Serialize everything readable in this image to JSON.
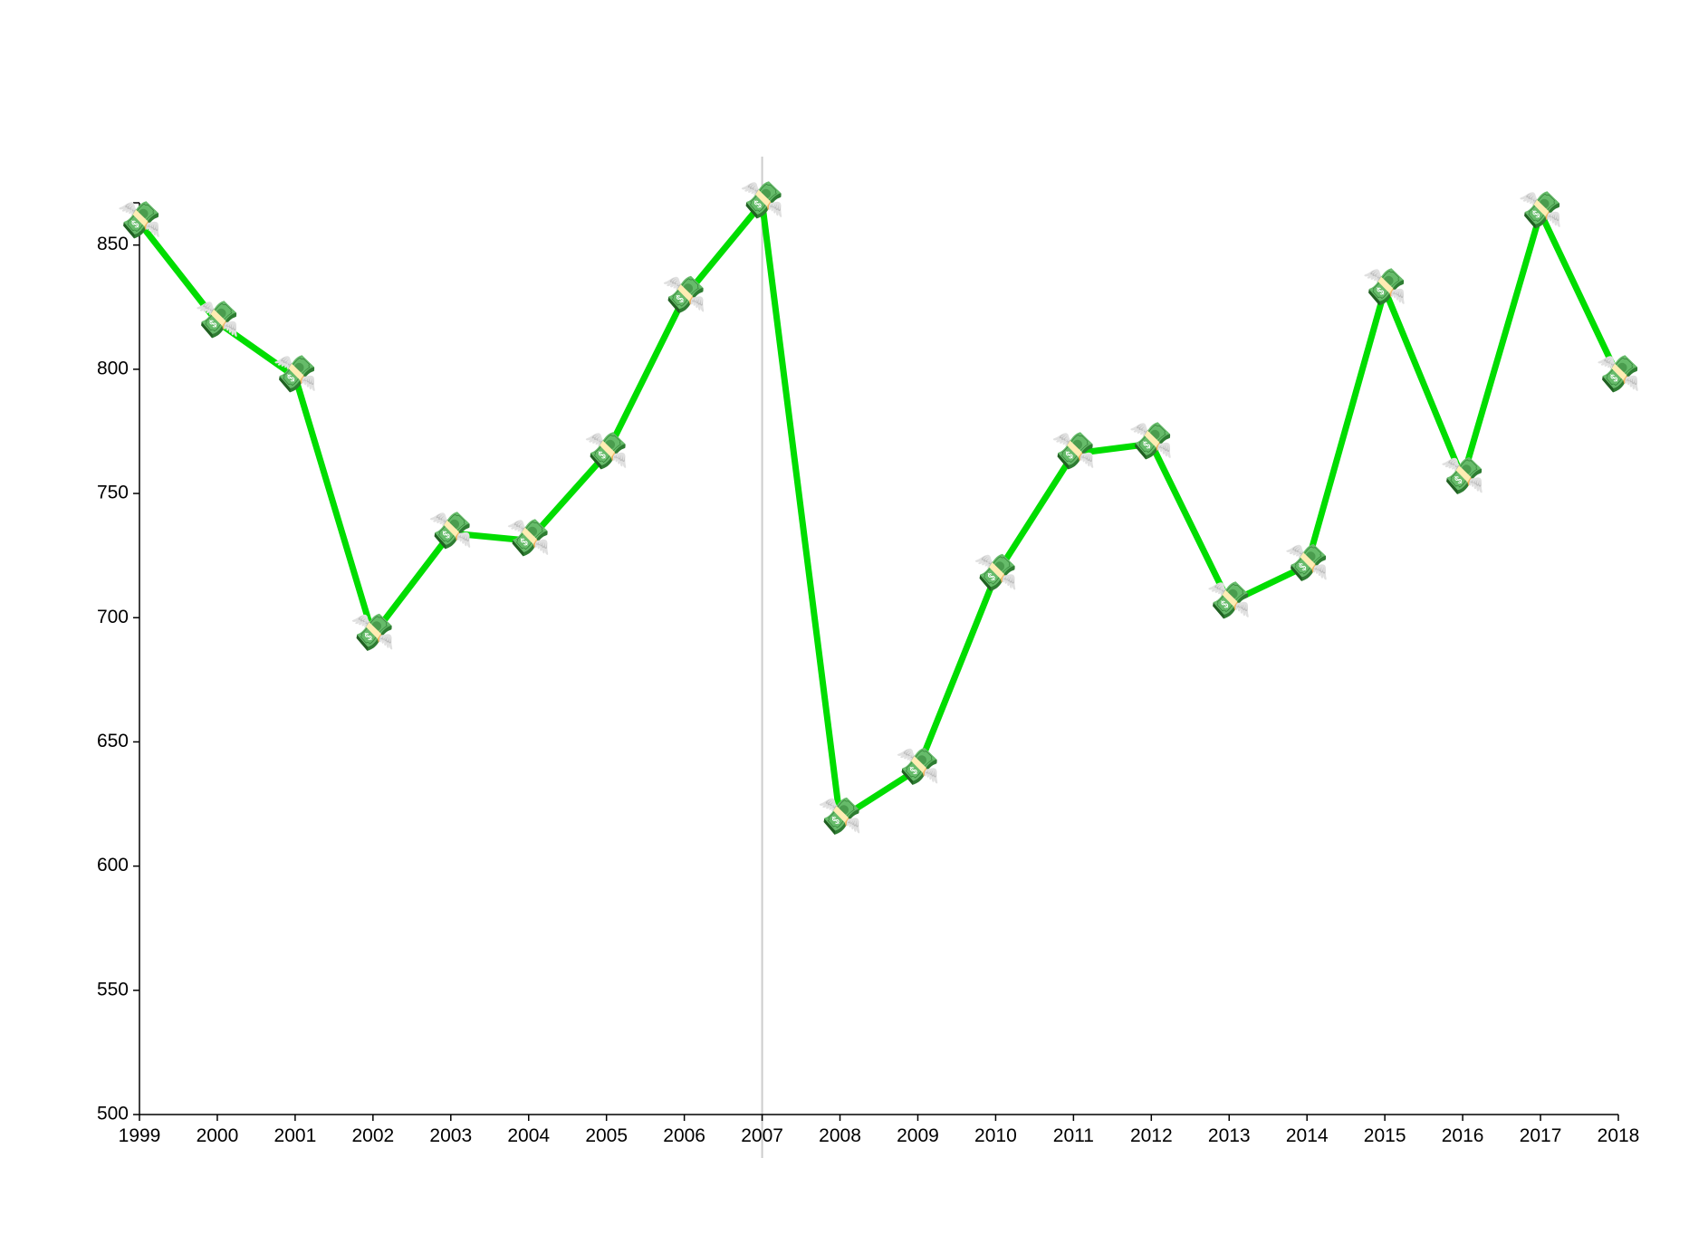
{
  "chart_data": {
    "type": "line",
    "x": [
      1999,
      2000,
      2001,
      2002,
      2003,
      2004,
      2005,
      2006,
      2007,
      2008,
      2009,
      2010,
      2011,
      2012,
      2013,
      2014,
      2015,
      2016,
      2017,
      2018
    ],
    "series": [
      {
        "color": "#00dd00",
        "values": [
          859,
          819,
          797,
          693,
          734,
          731,
          766,
          829,
          867,
          619,
          639,
          717,
          766,
          770,
          706,
          721,
          832,
          756,
          863,
          797
        ]
      }
    ],
    "marker": "💸",
    "xlim": [
      1999,
      2018
    ],
    "xticks": [
      1999,
      2000,
      2001,
      2002,
      2003,
      2004,
      2005,
      2006,
      2007,
      2008,
      2009,
      2010,
      2011,
      2012,
      2013,
      2014,
      2015,
      2016,
      2017,
      2018
    ],
    "ylim": [
      500,
      867
    ],
    "yticks": [
      500,
      550,
      600,
      650,
      700,
      750,
      800,
      850
    ],
    "crosshair_x": 2007,
    "crosshair_color": "#cccccc"
  }
}
